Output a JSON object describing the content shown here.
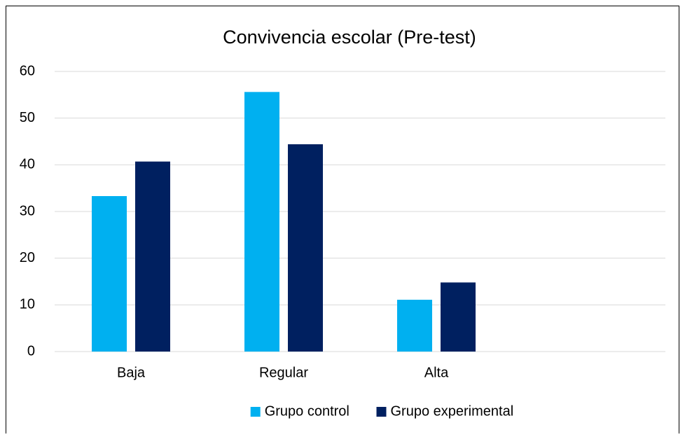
{
  "chart_data": {
    "type": "bar",
    "title": "Convivencia escolar (Pre-test)",
    "categories": [
      "Baja",
      "Regular",
      "Alta",
      null
    ],
    "series": [
      {
        "name": "Grupo control",
        "color": "#00b0f0",
        "values": [
          33.3,
          55.6,
          11.1,
          null
        ]
      },
      {
        "name": "Grupo experimental",
        "color": "#002060",
        "values": [
          40.7,
          44.4,
          14.8,
          null
        ]
      }
    ],
    "ylim": [
      0,
      60
    ],
    "yticks": [
      0,
      10,
      20,
      30,
      40,
      50,
      60
    ],
    "grid": true,
    "legend": "bottom"
  }
}
